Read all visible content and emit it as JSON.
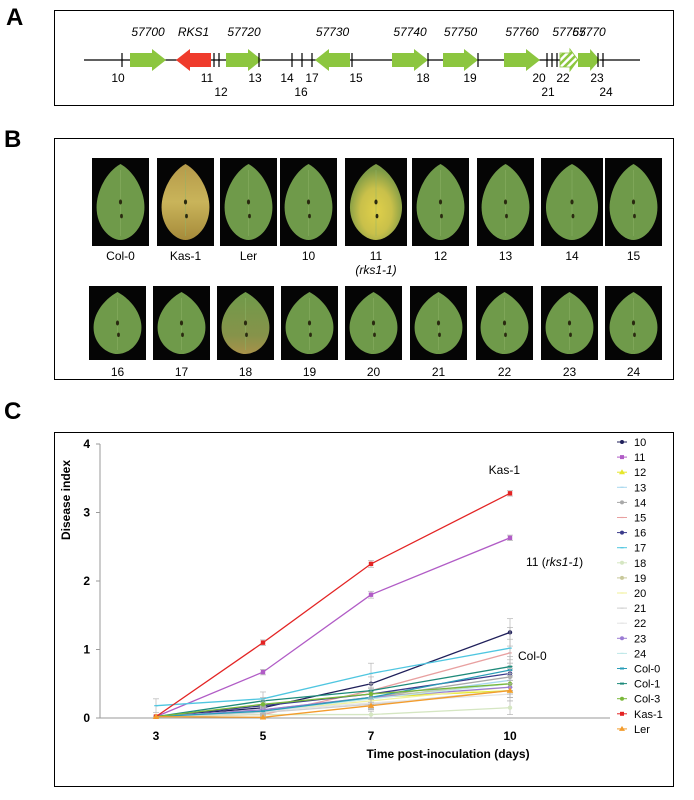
{
  "panels": {
    "a": "A",
    "b": "B",
    "c": "C"
  },
  "panel_a": {
    "genes": [
      {
        "label": "57700",
        "color": "#8cc63f",
        "dir": "right",
        "pattern": "solid"
      },
      {
        "label": "RKS1",
        "color": "#ef3b2c",
        "dir": "left",
        "pattern": "solid"
      },
      {
        "label": "57720",
        "color": "#8cc63f",
        "dir": "right",
        "pattern": "solid"
      },
      {
        "label": "57730",
        "color": "#8cc63f",
        "dir": "left",
        "pattern": "solid"
      },
      {
        "label": "57740",
        "color": "#8cc63f",
        "dir": "right",
        "pattern": "solid"
      },
      {
        "label": "57750",
        "color": "#8cc63f",
        "dir": "right",
        "pattern": "solid"
      },
      {
        "label": "57760",
        "color": "#8cc63f",
        "dir": "right",
        "pattern": "solid"
      },
      {
        "label": "57765",
        "color": "#8cc63f",
        "dir": "right",
        "pattern": "hatched"
      },
      {
        "label": "57770",
        "color": "#8cc63f",
        "dir": "right",
        "pattern": "solid"
      }
    ],
    "markers": [
      "10",
      "11",
      "12",
      "13",
      "14",
      "16",
      "17",
      "15",
      "18",
      "19",
      "20",
      "21",
      "22",
      "23",
      "24"
    ]
  },
  "panel_b": {
    "row1": [
      {
        "label": "Col-0",
        "sub": "",
        "symptom": "healthy"
      },
      {
        "label": "Kas-1",
        "sub": "",
        "symptom": "severe"
      },
      {
        "label": "Ler",
        "sub": "",
        "symptom": "healthy"
      },
      {
        "label": "10",
        "sub": "",
        "symptom": "healthy"
      },
      {
        "label": "11",
        "sub": "(rks1-1)",
        "symptom": "moderate"
      },
      {
        "label": "12",
        "sub": "",
        "symptom": "healthy"
      },
      {
        "label": "13",
        "sub": "",
        "symptom": "healthy"
      },
      {
        "label": "14",
        "sub": "",
        "symptom": "healthy"
      },
      {
        "label": "15",
        "sub": "",
        "symptom": "healthy"
      }
    ],
    "row2": [
      {
        "label": "16",
        "sub": "",
        "symptom": "healthy"
      },
      {
        "label": "17",
        "sub": "",
        "symptom": "healthy"
      },
      {
        "label": "18",
        "sub": "",
        "symptom": "mild"
      },
      {
        "label": "19",
        "sub": "",
        "symptom": "healthy"
      },
      {
        "label": "20",
        "sub": "",
        "symptom": "healthy"
      },
      {
        "label": "21",
        "sub": "",
        "symptom": "healthy"
      },
      {
        "label": "22",
        "sub": "",
        "symptom": "healthy"
      },
      {
        "label": "23",
        "sub": "",
        "symptom": "healthy"
      },
      {
        "label": "24",
        "sub": "",
        "symptom": "healthy"
      }
    ]
  },
  "chart_data": {
    "type": "line",
    "title": "",
    "xlabel": "Time post-inoculation (days)",
    "ylabel": "Disease index",
    "x": [
      3,
      5,
      7,
      10
    ],
    "xticks": [
      "3",
      "5",
      "7",
      "10"
    ],
    "ylim": [
      0,
      4
    ],
    "yticks": [
      "0",
      "1",
      "2",
      "3",
      "4"
    ],
    "grid": false,
    "legend_position": "right",
    "annotations": [
      {
        "text": "Kas-1",
        "series": "Kas-1"
      },
      {
        "text": "11 (rks1-1)",
        "series": "11"
      },
      {
        "text": "Col-0",
        "series": "Col-0"
      }
    ],
    "series": [
      {
        "name": "10",
        "color": "#1f1f5a",
        "marker": "circle",
        "values": [
          0.02,
          0.15,
          0.5,
          1.25
        ],
        "err": [
          0,
          0.05,
          0.1,
          0.2
        ]
      },
      {
        "name": "11",
        "color": "#b15cc6",
        "marker": "square",
        "values": [
          0.02,
          0.67,
          1.8,
          2.63
        ],
        "err": [
          0,
          0.04,
          0.05,
          0.04
        ]
      },
      {
        "name": "12",
        "color": "#e6e62b",
        "marker": "triangle",
        "values": [
          0.02,
          0.1,
          0.3,
          0.4
        ],
        "err": [
          0,
          0.04,
          0.08,
          0.1
        ]
      },
      {
        "name": "13",
        "color": "#a9d8ee",
        "marker": "none",
        "values": [
          0.02,
          0.12,
          0.28,
          0.55
        ],
        "err": [
          0,
          0.05,
          0.1,
          0.15
        ]
      },
      {
        "name": "14",
        "color": "#a8a8a8",
        "marker": "circle",
        "values": [
          0.02,
          0.1,
          0.3,
          0.6
        ],
        "err": [
          0,
          0.05,
          0.1,
          0.2
        ]
      },
      {
        "name": "15",
        "color": "#e8a0a0",
        "marker": "none",
        "values": [
          0.02,
          0.05,
          0.4,
          0.95
        ],
        "err": [
          0,
          0.05,
          0.1,
          0.2
        ]
      },
      {
        "name": "16",
        "color": "#3a3a8a",
        "marker": "circle",
        "values": [
          0.02,
          0.18,
          0.35,
          0.65
        ],
        "err": [
          0,
          0.05,
          0.1,
          0.15
        ]
      },
      {
        "name": "17",
        "color": "#4fc6e0",
        "marker": "none",
        "values": [
          0.18,
          0.28,
          0.65,
          1.02
        ],
        "err": [
          0.1,
          0.1,
          0.15,
          0.3
        ]
      },
      {
        "name": "18",
        "color": "#d5e6c2",
        "marker": "circle",
        "values": [
          0.02,
          0.05,
          0.05,
          0.15
        ],
        "err": [
          0,
          0.03,
          0.05,
          0.1
        ]
      },
      {
        "name": "19",
        "color": "#c8c89a",
        "marker": "circle",
        "values": [
          0.02,
          0.12,
          0.3,
          0.5
        ],
        "err": [
          0,
          0.05,
          0.1,
          0.15
        ]
      },
      {
        "name": "20",
        "color": "#f1f19a",
        "marker": "none",
        "values": [
          0.02,
          0.1,
          0.25,
          0.45
        ],
        "err": [
          0,
          0.05,
          0.1,
          0.1
        ]
      },
      {
        "name": "21",
        "color": "#cfcfcf",
        "marker": "none",
        "values": [
          0.02,
          0.08,
          0.2,
          0.4
        ],
        "err": [
          0,
          0.04,
          0.08,
          0.1
        ]
      },
      {
        "name": "22",
        "color": "#e4e4e4",
        "marker": "none",
        "values": [
          0.02,
          0.1,
          0.22,
          0.35
        ],
        "err": [
          0,
          0.04,
          0.08,
          0.1
        ]
      },
      {
        "name": "23",
        "color": "#9b7bd4",
        "marker": "circle",
        "values": [
          0.02,
          0.12,
          0.3,
          0.45
        ],
        "err": [
          0,
          0.05,
          0.1,
          0.1
        ]
      },
      {
        "name": "24",
        "color": "#bfe8e8",
        "marker": "none",
        "values": [
          0.02,
          0.1,
          0.28,
          0.5
        ],
        "err": [
          0,
          0.05,
          0.1,
          0.12
        ]
      },
      {
        "name": "Col-0",
        "color": "#2a9db8",
        "marker": "dash",
        "values": [
          0.02,
          0.1,
          0.3,
          0.7
        ],
        "err": [
          0,
          0.05,
          0.1,
          0.15
        ]
      },
      {
        "name": "Col-1",
        "color": "#1e8a7a",
        "marker": "dash",
        "values": [
          0.02,
          0.25,
          0.4,
          0.75
        ],
        "err": [
          0,
          0.05,
          0.1,
          0.15
        ]
      },
      {
        "name": "Col-3",
        "color": "#7ab83a",
        "marker": "circle",
        "values": [
          0.02,
          0.2,
          0.35,
          0.5
        ],
        "err": [
          0,
          0.05,
          0.08,
          0.1
        ]
      },
      {
        "name": "Kas-1",
        "color": "#e32424",
        "marker": "square",
        "values": [
          0.02,
          1.1,
          2.25,
          3.28
        ],
        "err": [
          0,
          0.04,
          0.05,
          0.04
        ]
      },
      {
        "name": "Ler",
        "color": "#f39c2c",
        "marker": "triangle",
        "values": [
          0.02,
          0.01,
          0.18,
          0.4
        ],
        "err": [
          0,
          0.02,
          0.05,
          0.1
        ]
      }
    ]
  }
}
